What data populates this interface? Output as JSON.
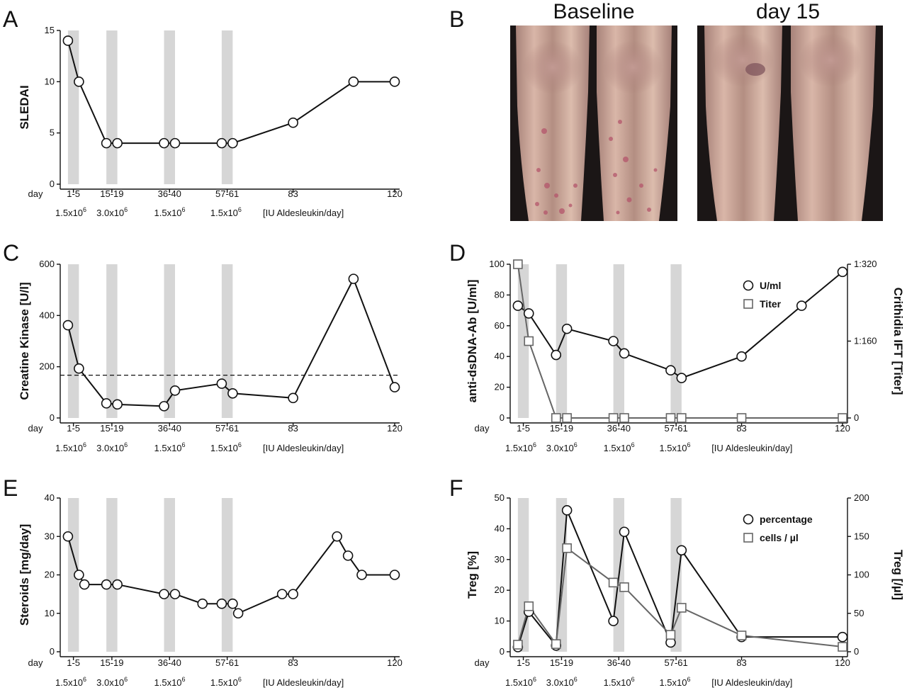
{
  "panel_labels": {
    "A": "A",
    "B": "B",
    "C": "C",
    "D": "D",
    "E": "E",
    "F": "F"
  },
  "day_word": "day",
  "photo_panel": {
    "left_title": "Baseline",
    "right_title": "day 15"
  },
  "colors": {
    "line_black": "#111111",
    "line_gray": "#666666",
    "band_gray": "#d6d6d6",
    "skin": "#c9a493",
    "lesion": "#b4556b"
  },
  "chart_data": [
    {
      "id": "A",
      "type": "line",
      "ylabel": "SLEDAI",
      "ylim": [
        0,
        15
      ],
      "yticks": [
        "0",
        "5",
        "10",
        "15"
      ],
      "xlim": [
        0,
        120
      ],
      "x_tick_labels": [
        {
          "x": 3,
          "label": "1-5"
        },
        {
          "x": 17,
          "label": "15-19"
        },
        {
          "x": 38,
          "label": "36-40"
        },
        {
          "x": 59,
          "label": "57-61"
        },
        {
          "x": 83,
          "label": "83"
        },
        {
          "x": 120,
          "label": "120"
        }
      ],
      "dose_labels": [
        "1.5x10^6",
        "3.0x10^6",
        "1.5x10^6",
        "1.5x10^6",
        "[IU Aldesleukin/day]"
      ],
      "bands": [
        [
          1,
          5
        ],
        [
          15,
          19
        ],
        [
          36,
          40
        ],
        [
          57,
          61
        ]
      ],
      "series": [
        {
          "marker": "circle",
          "color": "#111111",
          "x": [
            1,
            5,
            15,
            19,
            36,
            40,
            57,
            61,
            83,
            105,
            120
          ],
          "y": [
            14,
            10,
            4,
            4,
            4,
            4,
            4,
            4,
            6,
            10,
            10
          ]
        }
      ]
    },
    {
      "id": "C",
      "type": "line",
      "ylabel": "Creatine Kinase [U/l]",
      "ylim": [
        0,
        600
      ],
      "yticks": [
        "0",
        "200",
        "400",
        "600"
      ],
      "xlim": [
        0,
        120
      ],
      "x_tick_labels": [
        {
          "x": 3,
          "label": "1-5"
        },
        {
          "x": 17,
          "label": "15-19"
        },
        {
          "x": 38,
          "label": "36-40"
        },
        {
          "x": 59,
          "label": "57-61"
        },
        {
          "x": 83,
          "label": "83"
        },
        {
          "x": 120,
          "label": "120"
        }
      ],
      "dose_labels": [
        "1.5x10^6",
        "3.0x10^6",
        "1.5x10^6",
        "1.5x10^6",
        "[IU Aldesleukin/day]"
      ],
      "bands": [
        [
          1,
          5
        ],
        [
          15,
          19
        ],
        [
          36,
          40
        ],
        [
          57,
          61
        ]
      ],
      "reference_line": 167,
      "series": [
        {
          "marker": "circle",
          "color": "#111111",
          "x": [
            1,
            5,
            15,
            19,
            36,
            40,
            57,
            61,
            83,
            105,
            120
          ],
          "y": [
            362,
            193,
            57,
            53,
            46,
            107,
            134,
            96,
            78,
            543,
            120
          ]
        }
      ]
    },
    {
      "id": "D",
      "type": "line",
      "ylabel": "anti-dsDNA-Ab [U/ml]",
      "ylabel_right": "Crithidia IFT [Titer]",
      "ylim": [
        0,
        100
      ],
      "yticks": [
        "0",
        "20",
        "40",
        "60",
        "80",
        "100"
      ],
      "right_ticks": [
        {
          "value": 0,
          "label": "0"
        },
        {
          "value": 50,
          "label": "1:160"
        },
        {
          "value": 100,
          "label": "1:320"
        }
      ],
      "xlim": [
        0,
        120
      ],
      "x_tick_labels": [
        {
          "x": 3,
          "label": "1-5"
        },
        {
          "x": 17,
          "label": "15-19"
        },
        {
          "x": 38,
          "label": "36-40"
        },
        {
          "x": 59,
          "label": "57-61"
        },
        {
          "x": 83,
          "label": "83"
        },
        {
          "x": 120,
          "label": "120"
        }
      ],
      "dose_labels": [
        "1.5x10^6",
        "3.0x10^6",
        "1.5x10^6",
        "1.5x10^6",
        "[IU Aldesleukin/day]"
      ],
      "bands": [
        [
          1,
          5
        ],
        [
          15,
          19
        ],
        [
          36,
          40
        ],
        [
          57,
          61
        ]
      ],
      "legend": {
        "placement": "top-right"
      },
      "series": [
        {
          "name": "U/ml",
          "marker": "circle",
          "color": "#111111",
          "x": [
            1,
            5,
            15,
            19,
            36,
            40,
            57,
            61,
            83,
            105,
            120
          ],
          "y": [
            73,
            68,
            41,
            58,
            50,
            42,
            31,
            26,
            40,
            73,
            95
          ]
        },
        {
          "name": "Titer",
          "marker": "square",
          "color": "#666666",
          "x": [
            1,
            5,
            15,
            19,
            36,
            40,
            57,
            61,
            83,
            120
          ],
          "y": [
            100,
            50,
            0,
            0,
            0,
            0,
            0,
            0,
            0,
            0
          ]
        }
      ]
    },
    {
      "id": "E",
      "type": "line",
      "ylabel": "Steroids [mg/day]",
      "ylim": [
        0,
        40
      ],
      "yticks": [
        "0",
        "10",
        "20",
        "30",
        "40"
      ],
      "xlim": [
        0,
        120
      ],
      "x_tick_labels": [
        {
          "x": 3,
          "label": "1-5"
        },
        {
          "x": 17,
          "label": "15-19"
        },
        {
          "x": 38,
          "label": "36-40"
        },
        {
          "x": 59,
          "label": "57-61"
        },
        {
          "x": 83,
          "label": "83"
        },
        {
          "x": 120,
          "label": "120"
        }
      ],
      "dose_labels": [
        "1.5x10^6",
        "3.0x10^6",
        "1.5x10^6",
        "1.5x10^6",
        "[IU Aldesleukin/day]"
      ],
      "bands": [
        [
          1,
          5
        ],
        [
          15,
          19
        ],
        [
          36,
          40
        ],
        [
          57,
          61
        ]
      ],
      "series": [
        {
          "marker": "circle",
          "color": "#111111",
          "x": [
            1,
            5,
            7,
            15,
            19,
            36,
            40,
            50,
            57,
            61,
            63,
            79,
            83,
            99,
            103,
            108,
            120
          ],
          "y": [
            30,
            20,
            17.5,
            17.5,
            17.5,
            15,
            15,
            12.5,
            12.5,
            12.5,
            10,
            15,
            15,
            30,
            25,
            20,
            20
          ]
        }
      ]
    },
    {
      "id": "F",
      "type": "line",
      "ylabel": "Treg [%]",
      "ylabel_right": "Treg [/µl]",
      "ylim": [
        0,
        50
      ],
      "yticks": [
        "0",
        "10",
        "20",
        "30",
        "40",
        "50"
      ],
      "right_ticks": [
        {
          "value": 0,
          "label": "0"
        },
        {
          "value": 12.5,
          "label": "50"
        },
        {
          "value": 25,
          "label": "100"
        },
        {
          "value": 37.5,
          "label": "150"
        },
        {
          "value": 50,
          "label": "200"
        }
      ],
      "xlim": [
        0,
        120
      ],
      "x_tick_labels": [
        {
          "x": 3,
          "label": "1-5"
        },
        {
          "x": 17,
          "label": "15-19"
        },
        {
          "x": 38,
          "label": "36-40"
        },
        {
          "x": 59,
          "label": "57-61"
        },
        {
          "x": 83,
          "label": "83"
        },
        {
          "x": 120,
          "label": "120"
        }
      ],
      "dose_labels": [
        "1.5x10^6",
        "3.0x10^6",
        "1.5x10^6",
        "1.5x10^6",
        "[IU Aldesleukin/day]"
      ],
      "bands": [
        [
          1,
          5
        ],
        [
          15,
          19
        ],
        [
          36,
          40
        ],
        [
          57,
          61
        ]
      ],
      "legend": {
        "placement": "top-right"
      },
      "series": [
        {
          "name": "percentage",
          "marker": "circle",
          "color": "#111111",
          "x": [
            1,
            5,
            15,
            19,
            36,
            40,
            57,
            61,
            83,
            120
          ],
          "y": [
            1.5,
            13,
            2,
            46,
            10,
            39,
            3,
            33,
            4.8,
            4.8
          ]
        },
        {
          "name": "cells / µl",
          "marker": "square",
          "color": "#666666",
          "x": [
            1,
            5,
            15,
            19,
            36,
            40,
            57,
            61,
            83,
            120
          ],
          "y": [
            2.3,
            14.8,
            2.5,
            33.7,
            22.5,
            21,
            5.5,
            14.3,
            5.3,
            1.6
          ]
        }
      ]
    }
  ]
}
